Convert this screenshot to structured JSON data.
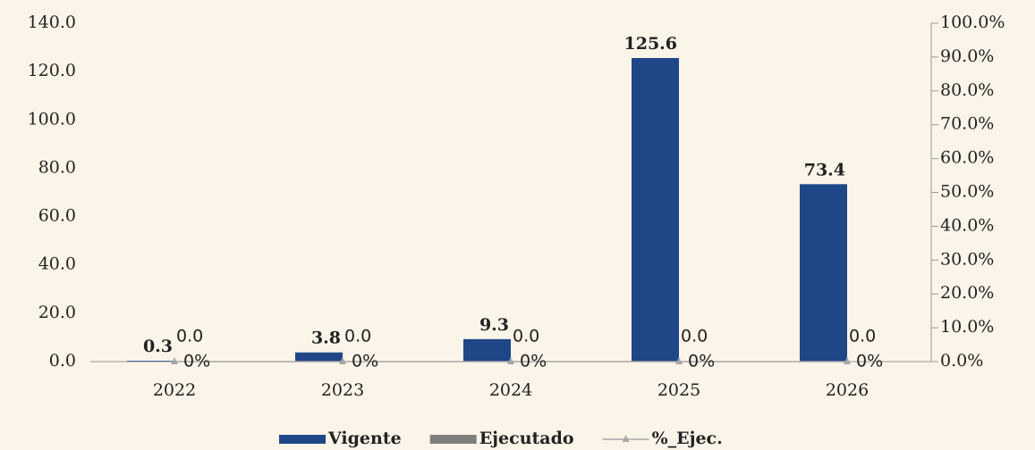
{
  "chart_data": {
    "type": "bar",
    "categories": [
      "2022",
      "2023",
      "2024",
      "2025",
      "2026"
    ],
    "series": [
      {
        "name": "Vigente",
        "color": "#1f4788",
        "values": [
          0.3,
          3.8,
          9.3,
          125.6,
          73.4
        ],
        "value_labels": [
          "0.3",
          "3.8",
          "9.3",
          "125.6",
          "73.4"
        ]
      },
      {
        "name": "Ejecutado",
        "color": "#7f7f7f",
        "values": [
          0,
          0,
          0,
          0,
          0
        ],
        "value_labels": [
          "0.0",
          "0.0",
          "0.0",
          "0.0",
          "0.0"
        ]
      },
      {
        "name": "%_Ejec.",
        "type": "line",
        "axis": "y2",
        "color": "#a6a6a6",
        "values": [
          0,
          0,
          0,
          0,
          0
        ],
        "value_labels": [
          "0%",
          "0%",
          "0%",
          "0%",
          "0%"
        ]
      }
    ],
    "ylim": [
      0,
      140
    ],
    "yticks": [
      {
        "value": 0,
        "label": "0.0"
      },
      {
        "value": 20,
        "label": "20.0"
      },
      {
        "value": 40,
        "label": "40.0"
      },
      {
        "value": 60,
        "label": "60.0"
      },
      {
        "value": 80,
        "label": "80.0"
      },
      {
        "value": 100,
        "label": "100.0"
      },
      {
        "value": 120,
        "label": "120.0"
      },
      {
        "value": 140,
        "label": "140.0"
      }
    ],
    "y2lim": [
      0,
      100
    ],
    "y2ticks": [
      {
        "value": 0,
        "label": "0.0%"
      },
      {
        "value": 10,
        "label": "10.0%"
      },
      {
        "value": 20,
        "label": "20.0%"
      },
      {
        "value": 30,
        "label": "30.0%"
      },
      {
        "value": 40,
        "label": "40.0%"
      },
      {
        "value": 50,
        "label": "50.0%"
      },
      {
        "value": 60,
        "label": "60.0%"
      },
      {
        "value": 70,
        "label": "70.0%"
      },
      {
        "value": 80,
        "label": "80.0%"
      },
      {
        "value": 90,
        "label": "90.0%"
      },
      {
        "value": 100,
        "label": "100.0%"
      }
    ],
    "legend": "bottom"
  }
}
